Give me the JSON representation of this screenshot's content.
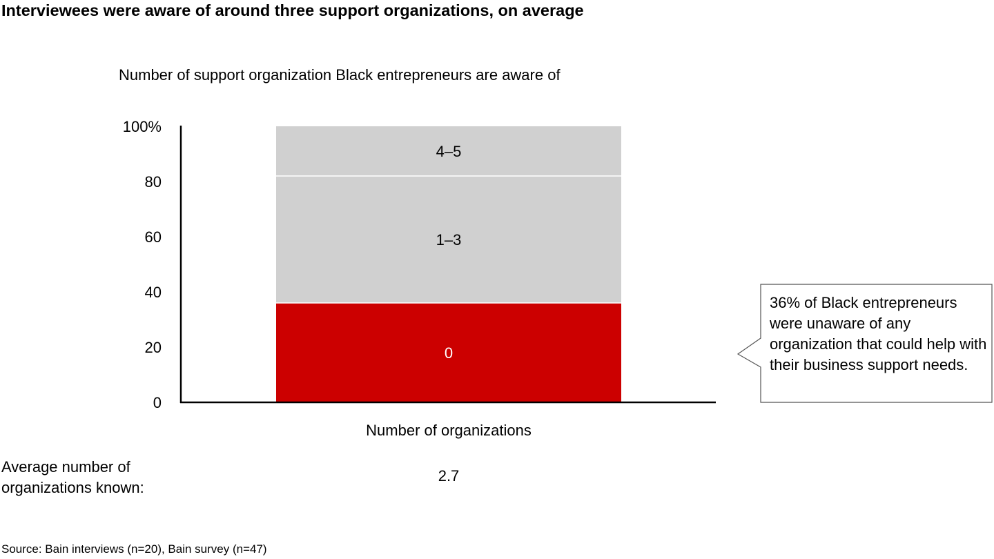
{
  "chart_data": {
    "type": "bar",
    "stacked": true,
    "title": "Interviewees were aware of around three support organizations, on average",
    "subtitle": "Number of support organization Black entrepreneurs are aware of",
    "xlabel": "Number of organizations",
    "ylabel": "",
    "ylim": [
      0,
      100
    ],
    "y_ticks": [
      "0",
      "20",
      "40",
      "60",
      "80",
      "100%"
    ],
    "y_tick_values": [
      0,
      20,
      40,
      60,
      80,
      100
    ],
    "categories": [
      ""
    ],
    "series": [
      {
        "name": "0",
        "values": [
          36
        ],
        "color": "#cc0000",
        "label_color": "#ffffff"
      },
      {
        "name": "1–3",
        "values": [
          46
        ],
        "color": "#d0d0d0",
        "label_color": "#000000"
      },
      {
        "name": "4–5",
        "values": [
          18
        ],
        "color": "#d0d0d0",
        "label_color": "#000000"
      }
    ],
    "grid": false,
    "legend": "none"
  },
  "average": {
    "label": "Average number of organizations known:",
    "value": "2.7"
  },
  "callout": {
    "text": "36% of Black entrepreneurs were unaware of any organization that could help with their business support needs."
  },
  "source": "Source: Bain interviews (n=20), Bain survey (n=47)"
}
